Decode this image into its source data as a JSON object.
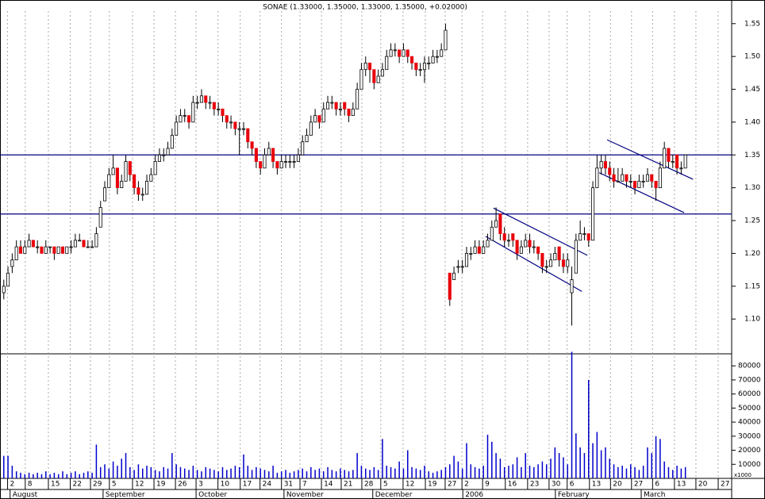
{
  "chart_data": {
    "type": "candlestick",
    "title": "SONAE (1.33000, 1.35000, 1.33000, 1.35000, +0.02000)",
    "up_color": "#ffffff",
    "down_color": "#e8000b",
    "volume_color": "#0000cc",
    "line_color": "#000080",
    "grid": true,
    "ylim": [
      1.047,
      1.586
    ],
    "yticks": [
      {
        "value": 1.1,
        "label": "1.10"
      },
      {
        "value": 1.15,
        "label": "1.15"
      },
      {
        "value": 1.2,
        "label": "1.20"
      },
      {
        "value": 1.25,
        "label": "1.25"
      },
      {
        "value": 1.3,
        "label": "1.30"
      },
      {
        "value": 1.35,
        "label": "1.35"
      },
      {
        "value": 1.4,
        "label": "1.40"
      },
      {
        "value": 1.45,
        "label": "1.45"
      },
      {
        "value": 1.5,
        "label": "1.50"
      },
      {
        "value": 1.55,
        "label": "1.55"
      }
    ],
    "hlines": [
      1.35,
      1.26
    ],
    "trendlines": [
      {
        "x": [
          116.4,
          138.7
        ],
        "y": [
          1.269,
          1.197
        ]
      },
      {
        "x": [
          114.5,
          137.4
        ],
        "y": [
          1.226,
          1.142
        ]
      },
      {
        "x": [
          143.4,
          163.8
        ],
        "y": [
          1.373,
          1.313
        ]
      },
      {
        "x": [
          141.5,
          161.7
        ],
        "y": [
          1.323,
          1.262
        ]
      }
    ],
    "xlim": [
      -0.9,
      173
    ],
    "xticks": [
      {
        "value": 0.9,
        "label": "2"
      },
      {
        "value": 5.1,
        "label": "8"
      },
      {
        "value": 10.6,
        "label": "15"
      },
      {
        "value": 15.8,
        "label": "22"
      },
      {
        "value": 20.6,
        "label": "29"
      },
      {
        "value": 25.1,
        "label": "5"
      },
      {
        "value": 30.6,
        "label": "12"
      },
      {
        "value": 35.7,
        "label": "19"
      },
      {
        "value": 40.8,
        "label": "26"
      },
      {
        "value": 45.7,
        "label": "3"
      },
      {
        "value": 50.9,
        "label": "10"
      },
      {
        "value": 56.2,
        "label": "17"
      },
      {
        "value": 60.9,
        "label": "24"
      },
      {
        "value": 66.0,
        "label": "31"
      },
      {
        "value": 70.4,
        "label": "7"
      },
      {
        "value": 75.5,
        "label": "14"
      },
      {
        "value": 80.2,
        "label": "21"
      },
      {
        "value": 85.1,
        "label": "28"
      },
      {
        "value": 89.6,
        "label": "5"
      },
      {
        "value": 94.9,
        "label": "12"
      },
      {
        "value": 100.2,
        "label": "19"
      },
      {
        "value": 104.9,
        "label": "27"
      },
      {
        "value": 108.9,
        "label": "2"
      },
      {
        "value": 113.8,
        "label": "9"
      },
      {
        "value": 119.2,
        "label": "16"
      },
      {
        "value": 124.5,
        "label": "23"
      },
      {
        "value": 129.6,
        "label": "30"
      },
      {
        "value": 133.9,
        "label": "6"
      },
      {
        "value": 139.2,
        "label": "13"
      },
      {
        "value": 144.2,
        "label": "20"
      },
      {
        "value": 149.2,
        "label": "27"
      },
      {
        "value": 154.2,
        "label": "6"
      },
      {
        "value": 159.4,
        "label": "13"
      },
      {
        "value": 164.5,
        "label": "20"
      },
      {
        "value": 169.8,
        "label": "27"
      }
    ],
    "month_ticks": [
      {
        "value": 1.5,
        "label": "August"
      },
      {
        "value": 23.6,
        "label": "September"
      },
      {
        "value": 45.7,
        "label": "October"
      },
      {
        "value": 66.6,
        "label": "November"
      },
      {
        "value": 87.7,
        "label": "December"
      },
      {
        "value": 109.1,
        "label": "2006"
      },
      {
        "value": 131.1,
        "label": "February"
      },
      {
        "value": 151.5,
        "label": "March"
      }
    ],
    "ohlc": [
      [
        1.14,
        1.16,
        1.13,
        1.15
      ],
      [
        1.15,
        1.18,
        1.15,
        1.17
      ],
      [
        1.18,
        1.2,
        1.17,
        1.19
      ],
      [
        1.19,
        1.22,
        1.19,
        1.21
      ],
      [
        1.21,
        1.22,
        1.2,
        1.2
      ],
      [
        1.2,
        1.22,
        1.2,
        1.21
      ],
      [
        1.21,
        1.23,
        1.21,
        1.22
      ],
      [
        1.22,
        1.22,
        1.21,
        1.21
      ],
      [
        1.21,
        1.22,
        1.2,
        1.21
      ],
      [
        1.21,
        1.21,
        1.2,
        1.2
      ],
      [
        1.2,
        1.22,
        1.2,
        1.21
      ],
      [
        1.21,
        1.21,
        1.2,
        1.21
      ],
      [
        1.21,
        1.21,
        1.19,
        1.2
      ],
      [
        1.2,
        1.21,
        1.2,
        1.21
      ],
      [
        1.21,
        1.21,
        1.2,
        1.2
      ],
      [
        1.2,
        1.21,
        1.2,
        1.21
      ],
      [
        1.21,
        1.22,
        1.2,
        1.21
      ],
      [
        1.21,
        1.23,
        1.21,
        1.22
      ],
      [
        1.22,
        1.23,
        1.22,
        1.22
      ],
      [
        1.22,
        1.22,
        1.21,
        1.21
      ],
      [
        1.21,
        1.22,
        1.21,
        1.21
      ],
      [
        1.21,
        1.22,
        1.21,
        1.21
      ],
      [
        1.21,
        1.24,
        1.21,
        1.23
      ],
      [
        1.24,
        1.28,
        1.24,
        1.27
      ],
      [
        1.28,
        1.31,
        1.28,
        1.3
      ],
      [
        1.3,
        1.33,
        1.3,
        1.32
      ],
      [
        1.32,
        1.35,
        1.32,
        1.33
      ],
      [
        1.33,
        1.33,
        1.29,
        1.3
      ],
      [
        1.3,
        1.32,
        1.3,
        1.31
      ],
      [
        1.31,
        1.35,
        1.31,
        1.34
      ],
      [
        1.34,
        1.34,
        1.31,
        1.32
      ],
      [
        1.32,
        1.32,
        1.29,
        1.3
      ],
      [
        1.3,
        1.31,
        1.28,
        1.29
      ],
      [
        1.29,
        1.3,
        1.28,
        1.29
      ],
      [
        1.29,
        1.32,
        1.29,
        1.31
      ],
      [
        1.31,
        1.33,
        1.31,
        1.32
      ],
      [
        1.32,
        1.35,
        1.32,
        1.34
      ],
      [
        1.34,
        1.36,
        1.34,
        1.35
      ],
      [
        1.35,
        1.36,
        1.34,
        1.35
      ],
      [
        1.35,
        1.37,
        1.35,
        1.36
      ],
      [
        1.36,
        1.39,
        1.36,
        1.38
      ],
      [
        1.38,
        1.41,
        1.38,
        1.4
      ],
      [
        1.4,
        1.42,
        1.4,
        1.41
      ],
      [
        1.41,
        1.42,
        1.4,
        1.41
      ],
      [
        1.41,
        1.41,
        1.39,
        1.4
      ],
      [
        1.4,
        1.44,
        1.4,
        1.43
      ],
      [
        1.43,
        1.44,
        1.42,
        1.43
      ],
      [
        1.43,
        1.45,
        1.43,
        1.44
      ],
      [
        1.44,
        1.44,
        1.42,
        1.43
      ],
      [
        1.43,
        1.44,
        1.42,
        1.43
      ],
      [
        1.43,
        1.43,
        1.41,
        1.42
      ],
      [
        1.42,
        1.43,
        1.41,
        1.42
      ],
      [
        1.42,
        1.42,
        1.4,
        1.41
      ],
      [
        1.41,
        1.41,
        1.39,
        1.4
      ],
      [
        1.4,
        1.41,
        1.39,
        1.4
      ],
      [
        1.4,
        1.4,
        1.38,
        1.39
      ],
      [
        1.39,
        1.4,
        1.35,
        1.39
      ],
      [
        1.39,
        1.4,
        1.38,
        1.39
      ],
      [
        1.39,
        1.39,
        1.36,
        1.37
      ],
      [
        1.37,
        1.37,
        1.35,
        1.36
      ],
      [
        1.36,
        1.36,
        1.33,
        1.34
      ],
      [
        1.34,
        1.34,
        1.32,
        1.33
      ],
      [
        1.33,
        1.36,
        1.33,
        1.35
      ],
      [
        1.35,
        1.37,
        1.35,
        1.36
      ],
      [
        1.36,
        1.36,
        1.33,
        1.34
      ],
      [
        1.34,
        1.34,
        1.32,
        1.33
      ],
      [
        1.33,
        1.35,
        1.33,
        1.34
      ],
      [
        1.34,
        1.35,
        1.33,
        1.34
      ],
      [
        1.34,
        1.35,
        1.33,
        1.34
      ],
      [
        1.34,
        1.35,
        1.33,
        1.34
      ],
      [
        1.34,
        1.36,
        1.34,
        1.35
      ],
      [
        1.35,
        1.38,
        1.35,
        1.37
      ],
      [
        1.37,
        1.39,
        1.37,
        1.38
      ],
      [
        1.38,
        1.41,
        1.38,
        1.4
      ],
      [
        1.4,
        1.42,
        1.4,
        1.41
      ],
      [
        1.41,
        1.41,
        1.39,
        1.4
      ],
      [
        1.4,
        1.43,
        1.4,
        1.42
      ],
      [
        1.42,
        1.44,
        1.42,
        1.43
      ],
      [
        1.43,
        1.44,
        1.42,
        1.43
      ],
      [
        1.43,
        1.43,
        1.41,
        1.42
      ],
      [
        1.42,
        1.43,
        1.41,
        1.42
      ],
      [
        1.43,
        1.43,
        1.41,
        1.42
      ],
      [
        1.42,
        1.42,
        1.4,
        1.41
      ],
      [
        1.41,
        1.43,
        1.41,
        1.42
      ],
      [
        1.42,
        1.46,
        1.42,
        1.45
      ],
      [
        1.45,
        1.49,
        1.45,
        1.48
      ],
      [
        1.48,
        1.5,
        1.47,
        1.49
      ],
      [
        1.49,
        1.49,
        1.46,
        1.48
      ],
      [
        1.48,
        1.48,
        1.45,
        1.46
      ],
      [
        1.46,
        1.48,
        1.46,
        1.47
      ],
      [
        1.47,
        1.49,
        1.47,
        1.48
      ],
      [
        1.48,
        1.51,
        1.48,
        1.5
      ],
      [
        1.5,
        1.52,
        1.5,
        1.51
      ],
      [
        1.51,
        1.52,
        1.5,
        1.51
      ],
      [
        1.51,
        1.51,
        1.49,
        1.5
      ],
      [
        1.5,
        1.52,
        1.5,
        1.51
      ],
      [
        1.51,
        1.51,
        1.49,
        1.5
      ],
      [
        1.5,
        1.5,
        1.48,
        1.49
      ],
      [
        1.49,
        1.49,
        1.47,
        1.48
      ],
      [
        1.48,
        1.49,
        1.47,
        1.48
      ],
      [
        1.48,
        1.5,
        1.46,
        1.49
      ],
      [
        1.49,
        1.5,
        1.48,
        1.49
      ],
      [
        1.49,
        1.51,
        1.49,
        1.5
      ],
      [
        1.5,
        1.51,
        1.49,
        1.5
      ],
      [
        1.5,
        1.52,
        1.5,
        1.51
      ],
      [
        1.51,
        1.55,
        1.51,
        1.54
      ],
      [
        1.17,
        1.17,
        1.12,
        1.13
      ],
      [
        1.16,
        1.18,
        1.16,
        1.17
      ],
      [
        1.18,
        1.19,
        1.17,
        1.18
      ],
      [
        1.18,
        1.19,
        1.17,
        1.18
      ],
      [
        1.18,
        1.21,
        1.18,
        1.2
      ],
      [
        1.2,
        1.21,
        1.19,
        1.2
      ],
      [
        1.2,
        1.22,
        1.2,
        1.21
      ],
      [
        1.21,
        1.22,
        1.2,
        1.2
      ],
      [
        1.2,
        1.22,
        1.2,
        1.21
      ],
      [
        1.21,
        1.23,
        1.21,
        1.22
      ],
      [
        1.22,
        1.25,
        1.22,
        1.24
      ],
      [
        1.24,
        1.27,
        1.24,
        1.25
      ],
      [
        1.26,
        1.26,
        1.22,
        1.23
      ],
      [
        1.23,
        1.24,
        1.21,
        1.22
      ],
      [
        1.22,
        1.23,
        1.21,
        1.22
      ],
      [
        1.23,
        1.23,
        1.21,
        1.22
      ],
      [
        1.22,
        1.22,
        1.19,
        1.2
      ],
      [
        1.2,
        1.22,
        1.2,
        1.21
      ],
      [
        1.21,
        1.23,
        1.21,
        1.22
      ],
      [
        1.22,
        1.23,
        1.2,
        1.21
      ],
      [
        1.21,
        1.22,
        1.2,
        1.21
      ],
      [
        1.21,
        1.21,
        1.19,
        1.2
      ],
      [
        1.2,
        1.2,
        1.17,
        1.18
      ],
      [
        1.18,
        1.19,
        1.17,
        1.18
      ],
      [
        1.18,
        1.2,
        1.18,
        1.19
      ],
      [
        1.19,
        1.21,
        1.19,
        1.2
      ],
      [
        1.21,
        1.21,
        1.18,
        1.19
      ],
      [
        1.19,
        1.2,
        1.17,
        1.18
      ],
      [
        1.18,
        1.2,
        1.17,
        1.19
      ],
      [
        1.14,
        1.18,
        1.09,
        1.16
      ],
      [
        1.17,
        1.23,
        1.17,
        1.22
      ],
      [
        1.22,
        1.25,
        1.22,
        1.23
      ],
      [
        1.23,
        1.24,
        1.22,
        1.23
      ],
      [
        1.23,
        1.23,
        1.21,
        1.22
      ],
      [
        1.22,
        1.31,
        1.22,
        1.3
      ],
      [
        1.3,
        1.35,
        1.3,
        1.33
      ],
      [
        1.33,
        1.35,
        1.32,
        1.34
      ],
      [
        1.34,
        1.35,
        1.32,
        1.33
      ],
      [
        1.33,
        1.34,
        1.31,
        1.32
      ],
      [
        1.32,
        1.33,
        1.3,
        1.31
      ],
      [
        1.31,
        1.33,
        1.31,
        1.31
      ],
      [
        1.31,
        1.33,
        1.31,
        1.32
      ],
      [
        1.32,
        1.32,
        1.3,
        1.31
      ],
      [
        1.31,
        1.32,
        1.3,
        1.31
      ],
      [
        1.31,
        1.31,
        1.29,
        1.3
      ],
      [
        1.3,
        1.32,
        1.3,
        1.31
      ],
      [
        1.31,
        1.32,
        1.3,
        1.31
      ],
      [
        1.31,
        1.33,
        1.31,
        1.32
      ],
      [
        1.32,
        1.32,
        1.3,
        1.31
      ],
      [
        1.31,
        1.31,
        1.28,
        1.3
      ],
      [
        1.3,
        1.34,
        1.3,
        1.33
      ],
      [
        1.33,
        1.37,
        1.33,
        1.36
      ],
      [
        1.36,
        1.36,
        1.33,
        1.34
      ],
      [
        1.34,
        1.35,
        1.33,
        1.34
      ],
      [
        1.35,
        1.35,
        1.32,
        1.33
      ],
      [
        1.33,
        1.34,
        1.32,
        1.33
      ],
      [
        1.33,
        1.35,
        1.33,
        1.35
      ]
    ],
    "volume": [
      16000,
      16000,
      9000,
      5000,
      4000,
      3000,
      4000,
      3000,
      4000,
      3000,
      5000,
      3000,
      4000,
      3000,
      5000,
      3000,
      4000,
      5000,
      3000,
      4000,
      5000,
      4000,
      24000,
      8000,
      10000,
      7000,
      12000,
      9000,
      14000,
      18000,
      8000,
      6000,
      10000,
      7000,
      9000,
      8000,
      6000,
      5000,
      8000,
      7000,
      18000,
      10000,
      8000,
      7000,
      6000,
      9000,
      6000,
      5000,
      8000,
      7000,
      6000,
      5000,
      8000,
      6000,
      7000,
      9000,
      8000,
      17000,
      9000,
      6000,
      8000,
      7000,
      6000,
      5000,
      9000,
      4000,
      5000,
      6000,
      4000,
      5000,
      6000,
      7000,
      5000,
      8000,
      6000,
      7000,
      5000,
      8000,
      6000,
      5000,
      7000,
      6000,
      5000,
      6000,
      18000,
      9000,
      7000,
      6000,
      8000,
      6000,
      28000,
      9000,
      8000,
      7000,
      12000,
      7000,
      20000,
      8000,
      7000,
      6000,
      9000,
      5000,
      4000,
      5000,
      6000,
      8000,
      10000,
      16000,
      12000,
      7000,
      25000,
      10000,
      8000,
      7000,
      9000,
      31000,
      26000,
      18000,
      14000,
      8000,
      9000,
      10000,
      15000,
      8000,
      18000,
      9000,
      8000,
      10000,
      12000,
      10000,
      14000,
      22000,
      18000,
      15000,
      10000,
      90000,
      32000,
      22000,
      18000,
      70000,
      25000,
      33000,
      20000,
      22000,
      14000,
      10000,
      8000,
      9000,
      7000,
      10000,
      8000,
      6000,
      9000,
      22000,
      18000,
      30000,
      28000,
      12000,
      8000,
      6000,
      9000,
      7000,
      8000
    ],
    "volume_ylim": [
      0,
      88000
    ],
    "volume_yticks": [
      10000,
      20000,
      30000,
      40000,
      50000,
      60000,
      70000,
      80000
    ],
    "volume_unit": "x1000"
  }
}
